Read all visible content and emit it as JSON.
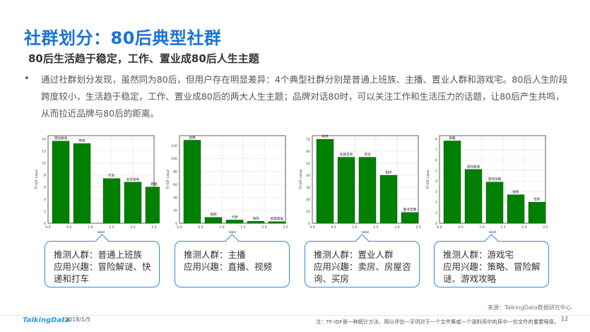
{
  "header": {
    "title": "社群划分：80后典型社群",
    "subtitle": "80后生活趋于稳定，工作、置业成80后人生主题"
  },
  "body": {
    "bullet": "•",
    "text": "通过社群划分发现，虽然同为80后，但用户存在明显差异：4个典型社群分别是普通上班族、主播、置业人群和游戏宅。80后人生阶段跨度较小，生活趋于稳定，工作、置业成80后的两大人生主题；品牌对话80时，可以关注工作和生活压力的话题，让80后产生共鸣，从而拉近品牌与80后的距离。"
  },
  "chart_data": [
    {
      "type": "bar",
      "categories": [
        "冒险解谜",
        "快递",
        "打车",
        "高享泰车",
        "跑酷"
      ],
      "values": [
        13.6,
        13.2,
        7.4,
        6.8,
        6.0
      ],
      "x": [
        0.1,
        0.6,
        1.3,
        1.8,
        2.3
      ],
      "xlim": [
        0,
        2.5
      ],
      "ylim": [
        0,
        14.5
      ],
      "yticks": [
        0,
        2,
        4,
        6,
        8,
        10,
        12,
        14
      ],
      "xticks": [
        "0.0",
        "0.5",
        "1.0",
        "1.5",
        "2.0",
        "2.5"
      ],
      "xlabel": "label",
      "ylabel": "TF-IDF value",
      "color": "#008000"
    },
    {
      "type": "bar",
      "categories": [
        "直播",
        "视频",
        "卡牌",
        "海淘",
        "智能家居"
      ],
      "values": [
        128,
        9,
        5,
        3,
        2.5
      ],
      "x": [
        0.1,
        0.6,
        1.1,
        1.6,
        2.1
      ],
      "xlim": [
        0,
        2.5
      ],
      "ylim": [
        0,
        135
      ],
      "yticks": [
        0,
        20,
        40,
        60,
        80,
        100,
        120
      ],
      "xticks": [
        "0.0",
        "0.5",
        "1.0",
        "1.5",
        "2.0",
        "2.5"
      ],
      "xlabel": "label",
      "ylabel": "TF-IDF value",
      "color": "#008000"
    },
    {
      "type": "bar",
      "categories": [
        "卖房",
        "房屋咨询",
        "买房",
        "租房",
        "图书音像"
      ],
      "values": [
        70,
        55,
        55,
        40,
        9
      ],
      "x": [
        0.1,
        0.6,
        1.1,
        1.6,
        2.1
      ],
      "xlim": [
        0,
        2.5
      ],
      "ylim": [
        0,
        73
      ],
      "yticks": [
        0,
        10,
        20,
        30,
        40,
        50,
        60,
        70
      ],
      "xticks": [
        "0.0",
        "0.5",
        "1.0",
        "1.5",
        "2.0",
        "2.5"
      ],
      "xlabel": "label",
      "ylabel": "TF-IDF value",
      "color": "#008000"
    },
    {
      "type": "bar",
      "categories": [
        "策略",
        "冒险解谜",
        "游戏攻略",
        "益智",
        "在机"
      ],
      "values": [
        7.8,
        5.1,
        3.9,
        2.7,
        2.0
      ],
      "x": [
        0.1,
        0.6,
        1.1,
        1.6,
        2.1
      ],
      "xlim": [
        0,
        2.5
      ],
      "ylim": [
        0,
        8.3
      ],
      "yticks": [
        0,
        1,
        2,
        3,
        4,
        5,
        6,
        7,
        8
      ],
      "xticks": [
        "0.0",
        "0.5",
        "1.0",
        "1.5",
        "2.0",
        "2.5"
      ],
      "xlabel": "label",
      "ylabel": "TF-IDF value",
      "color": "#008000"
    }
  ],
  "cards": [
    {
      "line1": "推测人群：普通上班族",
      "line2": "应用兴趣：冒险解谜、快",
      "line3": "递和打车"
    },
    {
      "line1": "推测人群：主播",
      "line2": "应用兴趣：直播、视频",
      "line3": ""
    },
    {
      "line1": "推测人群：置业人群",
      "line2": "应用兴趣：卖房、房屋咨",
      "line3": "询、买房"
    },
    {
      "line1": "推测人群：游戏宅",
      "line2": "应用兴趣：策略、冒险解",
      "line3": "谜、游戏攻略"
    }
  ],
  "footer": {
    "source": "来源：TalkingData数据研究中心",
    "logo": "TalkingData",
    "date": "2018/1/5",
    "note": "注：TF-IDF是一种统计方法，用以评估一字词对于一个文件集或一个语料库中的其中一份文件的重要程度。",
    "page": "12"
  }
}
